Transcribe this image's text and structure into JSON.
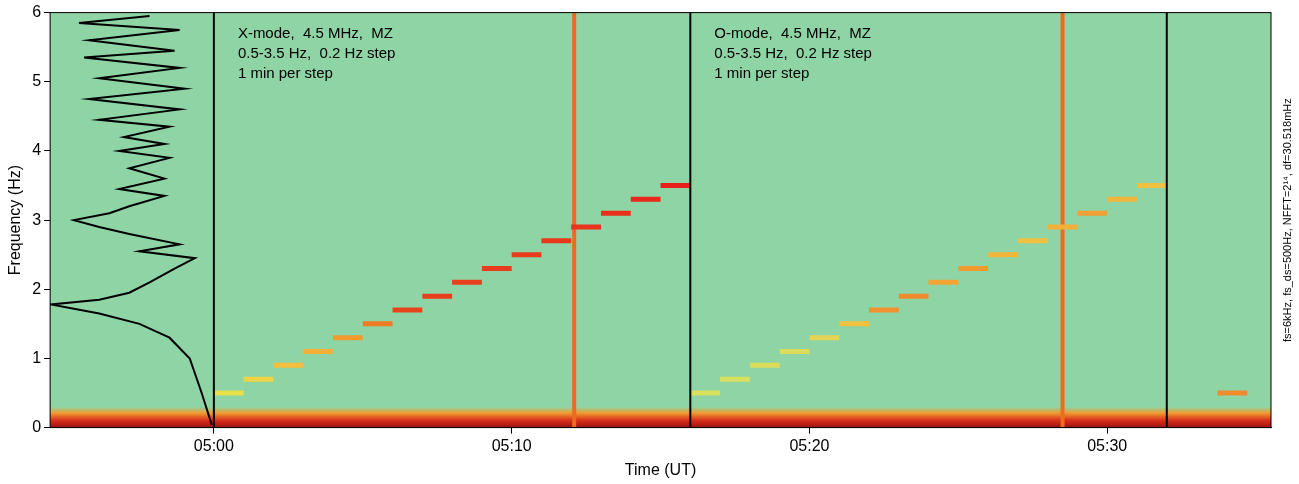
{
  "chart_data": {
    "type": "spectrogram",
    "x_label": "Time (UT)",
    "y_label": "Frequency (Hz)",
    "xlim": [
      294.5,
      335.5
    ],
    "xticks": [
      {
        "value": 300,
        "label": "05:00"
      },
      {
        "value": 310,
        "label": "05:10"
      },
      {
        "value": 320,
        "label": "05:20"
      },
      {
        "value": 330,
        "label": "05:30"
      }
    ],
    "ylim": [
      0,
      6
    ],
    "yticks": [
      0,
      1,
      2,
      3,
      4,
      5,
      6
    ],
    "grid": false,
    "series": [
      {
        "type": "scatter",
        "marker": "line",
        "x": [
          300.5,
          301.5,
          302.5,
          303.5,
          304.5,
          305.5,
          306.5,
          307.5,
          308.5,
          309.5,
          310.5,
          311.5,
          312.5,
          313.5,
          314.5,
          315.5
        ],
        "values": [
          0.5,
          0.7,
          0.9,
          1.1,
          1.3,
          1.5,
          1.7,
          1.9,
          2.1,
          2.3,
          2.5,
          2.7,
          2.9,
          3.1,
          3.3,
          3.5
        ],
        "colors": [
          "#e6e04a",
          "#eed444",
          "#f2c03c",
          "#f2b03a",
          "#f29a30",
          "#f07a25",
          "#e8441c",
          "#e8401c",
          "#e8401c",
          "#e83c1c",
          "#e83c1c",
          "#e8381c",
          "#e8341c",
          "#e8301a",
          "#e8281a",
          "#e8201a"
        ]
      },
      {
        "type": "scatter",
        "marker": "line",
        "x": [
          316.5,
          317.5,
          318.5,
          319.5,
          320.5,
          321.5,
          322.5,
          323.5,
          324.5,
          325.5,
          326.5,
          327.5,
          328.5,
          329.5,
          330.5,
          331.5
        ],
        "values": [
          0.5,
          0.7,
          0.9,
          1.1,
          1.3,
          1.5,
          1.7,
          1.9,
          2.1,
          2.3,
          2.5,
          2.7,
          2.9,
          3.1,
          3.3,
          3.5
        ],
        "colors": [
          "#d8e060",
          "#d8e060",
          "#dcdc5c",
          "#dcdc5c",
          "#e2d454",
          "#f0c040",
          "#f09030",
          "#f08a2e",
          "#f2a535",
          "#f09a30",
          "#f2b53a",
          "#f0c040",
          "#f2b03a",
          "#f0a035",
          "#f0b53a",
          "#f0c040"
        ]
      },
      {
        "type": "scatter",
        "marker": "line",
        "x": [
          334.2
        ],
        "values": [
          0.5
        ],
        "colors": [
          "#f08a2e"
        ]
      },
      {
        "type": "line",
        "line_style": "solid",
        "color": "#000000",
        "x": [
          299.93,
          299.59,
          299.19,
          298.51,
          297.5,
          296.15,
          294.53,
          296.15,
          297.16,
          297.84,
          298.68,
          299.36,
          297.5,
          298.85,
          297.16,
          296.15,
          295.3,
          296.49,
          297.16,
          298.34,
          296.82,
          298.34,
          297.16,
          298.51,
          296.82,
          298.34,
          296.98,
          298.51,
          296.15,
          298.85,
          295.81,
          299.02,
          296.15,
          298.85,
          295.64,
          298.68,
          295.81,
          298.85,
          295.47,
          297.84
        ],
        "values": [
          0.04,
          0.5,
          1.0,
          1.3,
          1.5,
          1.65,
          1.78,
          1.85,
          1.95,
          2.1,
          2.3,
          2.45,
          2.55,
          2.65,
          2.8,
          2.9,
          3.0,
          3.1,
          3.2,
          3.35,
          3.45,
          3.6,
          3.75,
          3.9,
          4.0,
          4.1,
          4.2,
          4.35,
          4.45,
          4.6,
          4.75,
          4.9,
          5.05,
          5.2,
          5.35,
          5.45,
          5.6,
          5.75,
          5.85,
          5.95
        ]
      }
    ],
    "vertical_lines": {
      "x": [
        300,
        316,
        332
      ],
      "color": "#000000"
    },
    "impulses": {
      "x": [
        312.1,
        328.5
      ],
      "color": "#ee6a1e"
    },
    "low_frequency_band": [
      0,
      0.3
    ],
    "annotations": [
      [
        "X-mode,  4.5 MHz,  MZ",
        "0.5-3.5 Hz,  0.2 Hz step",
        "1 min per step"
      ],
      [
        "O-mode,  4.5 MHz,  MZ",
        "0.5-3.5 Hz,  0.2 Hz step",
        "1 min per step"
      ]
    ],
    "side_text": "fs=6kHz, fs_ds=500Hz, NFFT=2¹⁴, df=30.518mHz"
  }
}
